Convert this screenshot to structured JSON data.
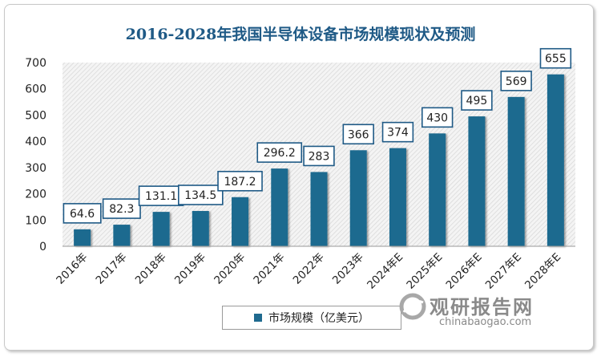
{
  "chart_data": {
    "type": "bar",
    "title": "2016-2028年我国半导体设备市场规模现状及预测",
    "categories": [
      "2016年",
      "2017年",
      "2018年",
      "2019年",
      "2020年",
      "2021年",
      "2022年",
      "2023年",
      "2024年E",
      "2025年E",
      "2026年E",
      "2027年E",
      "2028年E"
    ],
    "series": [
      {
        "name": "市场规模（亿美元）",
        "values": [
          64.6,
          82.3,
          131.1,
          134.5,
          187.2,
          296.2,
          283,
          366,
          374,
          430,
          495,
          569,
          655
        ],
        "labels": [
          "64.6",
          "82.3",
          "131.1",
          "134.5",
          "187.2",
          "296.2",
          "283",
          "366",
          "374",
          "430",
          "495",
          "569",
          "655"
        ]
      }
    ],
    "ylim": [
      0,
      700
    ],
    "yticks": [
      0,
      100,
      200,
      300,
      400,
      500,
      600,
      700
    ],
    "grid": false,
    "legend": "bottom-center",
    "colors": {
      "bar": "#1f6a8f",
      "title": "#1f5a86",
      "label_border": "#1f5a86"
    }
  },
  "watermark": {
    "brand": "观研报告网",
    "url": "chinabaogao.com"
  }
}
